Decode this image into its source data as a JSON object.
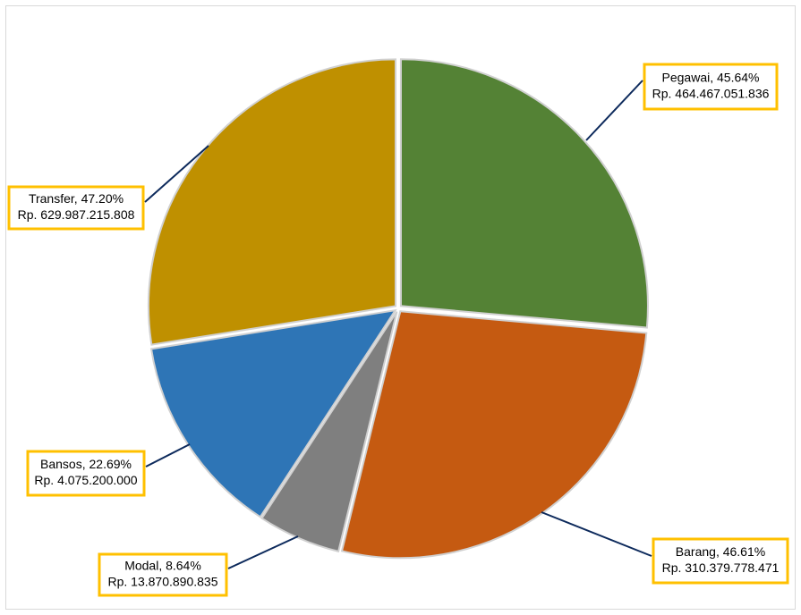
{
  "chart_data": {
    "type": "pie",
    "categories": [
      "Pegawai",
      "Barang",
      "Modal",
      "Bansos",
      "Transfer"
    ],
    "values": [
      26.4,
      27.4,
      5.4,
      13.3,
      27.5
    ],
    "colors": [
      "#548235",
      "#c55a11",
      "#7f7f7f",
      "#2e75b6",
      "#bf9000"
    ],
    "labels": [
      [
        "Pegawai, 45.64%",
        "Rp. 464.467.051.836"
      ],
      [
        "Barang, 46.61%",
        "Rp. 310.379.778.471"
      ],
      [
        "Modal, 8.64%",
        "Rp. 13.870.890.835"
      ],
      [
        "Bansos, 22.69%",
        "Rp. 4.075.200.000"
      ],
      [
        "Transfer, 47.20%",
        "Rp. 629.987.215.808"
      ]
    ]
  }
}
